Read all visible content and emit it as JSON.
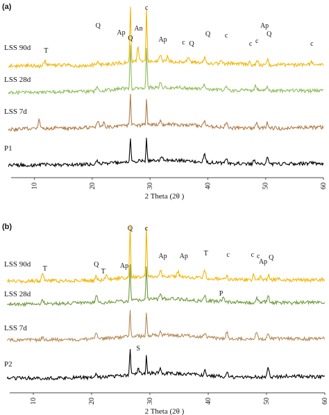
{
  "chart_data": [
    {
      "type": "line",
      "panel_label": "(a)",
      "xlabel": "2 Theta (2θ )",
      "xlim": [
        5,
        60
      ],
      "x_ticks": [
        10,
        20,
        30,
        40,
        50,
        60
      ],
      "grid": false,
      "series": [
        {
          "name": "LSS 90d",
          "color": "#f4b400",
          "peaks": [
            [
              11.8,
              12
            ],
            [
              21.0,
              6
            ],
            [
              26.6,
              135
            ],
            [
              27.9,
              35
            ],
            [
              29.4,
              130
            ],
            [
              31.8,
              14
            ],
            [
              33.0,
              10
            ],
            [
              36.6,
              8
            ],
            [
              39.4,
              12
            ],
            [
              42.4,
              9
            ],
            [
              47.2,
              10
            ],
            [
              48.6,
              11
            ],
            [
              50.3,
              14
            ],
            [
              58.0,
              8
            ]
          ]
        },
        {
          "name": "LSS 28d",
          "color": "#8fbc5a",
          "peaks": [
            [
              20.8,
              10
            ],
            [
              26.6,
              110
            ],
            [
              29.4,
              95
            ],
            [
              31.8,
              12
            ],
            [
              39.4,
              10
            ],
            [
              43.2,
              8
            ],
            [
              48.3,
              10
            ],
            [
              50.3,
              12
            ]
          ]
        },
        {
          "name": "LSS 7d",
          "color": "#b07b45",
          "peaks": [
            [
              10.8,
              25
            ],
            [
              21.0,
              14
            ],
            [
              22.0,
              10
            ],
            [
              26.6,
              75
            ],
            [
              29.4,
              65
            ],
            [
              31.8,
              10
            ],
            [
              39.4,
              10
            ],
            [
              43.2,
              12
            ],
            [
              48.4,
              10
            ],
            [
              50.3,
              12
            ]
          ]
        },
        {
          "name": "P1",
          "color": "#000000",
          "peaks": [
            [
              20.8,
              8
            ],
            [
              26.6,
              60
            ],
            [
              29.4,
              55
            ],
            [
              32.0,
              10
            ],
            [
              39.4,
              22
            ],
            [
              43.2,
              10
            ],
            [
              48.0,
              10
            ],
            [
              50.3,
              18
            ]
          ]
        }
      ],
      "annotations": [
        {
          "text": "T",
          "x": 12.0
        },
        {
          "text": "Q",
          "x": 21.0
        },
        {
          "text": "Ap",
          "x": 25.0
        },
        {
          "text": "Q",
          "x": 26.6
        },
        {
          "text": "An",
          "x": 28.0
        },
        {
          "text": "c",
          "x": 29.4
        },
        {
          "text": "Ap",
          "x": 32.2
        },
        {
          "text": "c",
          "x": 35.8
        },
        {
          "text": "Q",
          "x": 37.2
        },
        {
          "text": "Q",
          "x": 40.0
        },
        {
          "text": "c",
          "x": 43.2
        },
        {
          "text": "c",
          "x": 47.4
        },
        {
          "text": "c",
          "x": 48.5
        },
        {
          "text": "Ap",
          "x": 49.8
        },
        {
          "text": "Q",
          "x": 50.6
        },
        {
          "text": "c",
          "x": 58.0
        }
      ]
    },
    {
      "type": "line",
      "panel_label": "(b)",
      "xlabel": "2 Theta (2θ )",
      "xlim": [
        5,
        60
      ],
      "x_ticks": [
        10,
        20,
        30,
        40,
        50,
        60
      ],
      "grid": false,
      "series": [
        {
          "name": "LSS 90d",
          "color": "#f4b400",
          "peaks": [
            [
              11.6,
              18
            ],
            [
              20.8,
              10
            ],
            [
              22.5,
              8
            ],
            [
              26.6,
              130
            ],
            [
              29.4,
              125
            ],
            [
              31.8,
              16
            ],
            [
              34.8,
              14
            ],
            [
              39.4,
              18
            ],
            [
              43.2,
              10
            ],
            [
              47.8,
              12
            ],
            [
              49.0,
              10
            ],
            [
              50.4,
              12
            ]
          ]
        },
        {
          "name": "LSS 28d",
          "color": "#6e9a3a",
          "peaks": [
            [
              11.6,
              10
            ],
            [
              20.8,
              20
            ],
            [
              26.6,
              85
            ],
            [
              29.4,
              80
            ],
            [
              31.8,
              12
            ],
            [
              39.4,
              12
            ],
            [
              42.6,
              10
            ],
            [
              48.3,
              12
            ],
            [
              50.3,
              12
            ]
          ]
        },
        {
          "name": "LSS 7d",
          "color": "#b58a55",
          "peaks": [
            [
              11.6,
              8
            ],
            [
              20.8,
              14
            ],
            [
              26.6,
              65
            ],
            [
              29.4,
              60
            ],
            [
              31.8,
              10
            ],
            [
              39.4,
              10
            ],
            [
              43.2,
              16
            ],
            [
              48.3,
              12
            ],
            [
              50.3,
              14
            ]
          ]
        },
        {
          "name": "P2",
          "color": "#000000",
          "peaks": [
            [
              20.8,
              8
            ],
            [
              26.6,
              60
            ],
            [
              28.0,
              14
            ],
            [
              29.4,
              45
            ],
            [
              31.8,
              12
            ],
            [
              39.4,
              10
            ],
            [
              43.2,
              10
            ],
            [
              50.3,
              22
            ]
          ]
        }
      ],
      "annotations": [
        {
          "text": "T",
          "x": 12.0
        },
        {
          "text": "Q",
          "x": 20.8
        },
        {
          "text": "T",
          "x": 22.0
        },
        {
          "text": "Ap",
          "x": 25.6
        },
        {
          "text": "Q",
          "x": 26.6
        },
        {
          "text": "c",
          "x": 29.4
        },
        {
          "text": "Ap",
          "x": 32.2
        },
        {
          "text": "Ap",
          "x": 35.8
        },
        {
          "text": "T",
          "x": 39.6
        },
        {
          "text": "c",
          "x": 43.4
        },
        {
          "text": "c",
          "x": 47.6
        },
        {
          "text": "c",
          "x": 48.6
        },
        {
          "text": "Ap",
          "x": 49.4
        },
        {
          "text": "Q",
          "x": 50.8
        },
        {
          "text": "P",
          "x": 42.2
        },
        {
          "text": "S",
          "x": 28.0
        }
      ]
    }
  ]
}
